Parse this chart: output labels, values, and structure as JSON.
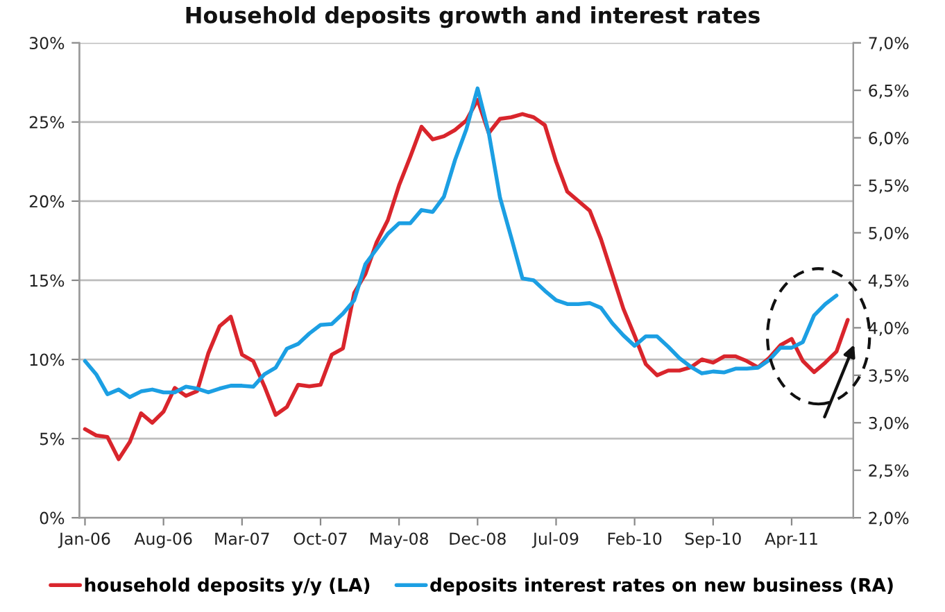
{
  "chart_data": {
    "type": "line",
    "title": "Household deposits growth and interest rates",
    "categories": [
      "Jan-06",
      null,
      null,
      null,
      null,
      null,
      null,
      "Aug-06",
      null,
      null,
      null,
      null,
      null,
      null,
      "Mar-07",
      null,
      null,
      null,
      null,
      null,
      null,
      "Oct-07",
      null,
      null,
      null,
      null,
      null,
      null,
      "May-08",
      null,
      null,
      null,
      null,
      null,
      null,
      "Dec-08",
      null,
      null,
      null,
      null,
      null,
      null,
      "Jul-09",
      null,
      null,
      null,
      null,
      null,
      null,
      "Feb-10",
      null,
      null,
      null,
      null,
      null,
      null,
      "Sep-10",
      null,
      null,
      null,
      null,
      null,
      null,
      "Apr-11",
      null,
      null,
      null,
      null,
      null
    ],
    "series": [
      {
        "name": "household deposits y/y (LA)",
        "color": "#d9252c",
        "values": [
          5.6,
          5.2,
          5.1,
          3.7,
          4.8,
          6.6,
          6.0,
          6.7,
          8.2,
          7.7,
          8.0,
          10.4,
          12.1,
          12.7,
          10.3,
          9.9,
          8.3,
          6.5,
          7.0,
          8.4,
          8.3,
          8.4,
          10.3,
          10.7,
          14.2,
          15.4,
          17.4,
          18.8,
          21.0,
          22.8,
          24.7,
          23.9,
          24.1,
          24.5,
          25.1,
          26.4,
          24.3,
          25.2,
          25.3,
          25.5,
          25.3,
          24.8,
          22.5,
          20.6,
          20.0,
          19.4,
          17.6,
          15.4,
          13.2,
          11.5,
          9.7,
          9.0,
          9.3,
          9.3,
          9.5,
          10.0,
          9.8,
          10.2,
          10.2,
          9.9,
          9.5,
          10.1,
          10.9,
          11.3,
          9.9,
          9.2,
          9.8,
          10.5,
          12.5
        ]
      },
      {
        "name": "deposits interest rates on new business (RA)",
        "color": "#1c9fe3",
        "axis": "y2",
        "values": [
          3.65,
          3.51,
          3.3,
          3.35,
          3.27,
          3.33,
          3.35,
          3.32,
          3.32,
          3.38,
          3.36,
          3.32,
          3.36,
          3.39,
          3.39,
          3.38,
          3.51,
          3.58,
          3.78,
          3.83,
          3.94,
          4.03,
          4.04,
          4.15,
          4.29,
          4.67,
          4.83,
          4.99,
          5.1,
          5.1,
          5.24,
          5.22,
          5.38,
          5.77,
          6.09,
          6.52,
          6.05,
          5.37,
          4.95,
          4.52,
          4.5,
          4.39,
          4.29,
          4.25,
          4.25,
          4.26,
          4.21,
          4.05,
          3.92,
          3.81,
          3.91,
          3.91,
          3.8,
          3.68,
          3.59,
          3.52,
          3.54,
          3.53,
          3.57,
          3.57,
          3.58,
          3.66,
          3.79,
          3.79,
          3.85,
          4.13,
          4.25,
          4.34,
          null
        ]
      }
    ],
    "ylim": [
      0,
      30
    ],
    "yticks": [
      {
        "value": 0,
        "label": "0%"
      },
      {
        "value": 5,
        "label": "5%"
      },
      {
        "value": 10,
        "label": "10%"
      },
      {
        "value": 15,
        "label": "15%"
      },
      {
        "value": 20,
        "label": "20%"
      },
      {
        "value": 25,
        "label": "25%"
      },
      {
        "value": 30,
        "label": "30%"
      }
    ],
    "y2lim": [
      2,
      7
    ],
    "y2ticks": [
      {
        "value": 2,
        "label": "2,0%"
      },
      {
        "value": 2.5,
        "label": "2,5%"
      },
      {
        "value": 3,
        "label": "3,0%"
      },
      {
        "value": 3.5,
        "label": "3,5%"
      },
      {
        "value": 4,
        "label": "4,0%"
      },
      {
        "value": 4.5,
        "label": "4,5%"
      },
      {
        "value": 5,
        "label": "5,0%"
      },
      {
        "value": 5.5,
        "label": "5,5%"
      },
      {
        "value": 6,
        "label": "6,0%"
      },
      {
        "value": 6.5,
        "label": "6,5%"
      },
      {
        "value": 7,
        "label": "7,0%"
      }
    ],
    "grid": "y",
    "legend": "bottom",
    "line_style": "solid"
  }
}
